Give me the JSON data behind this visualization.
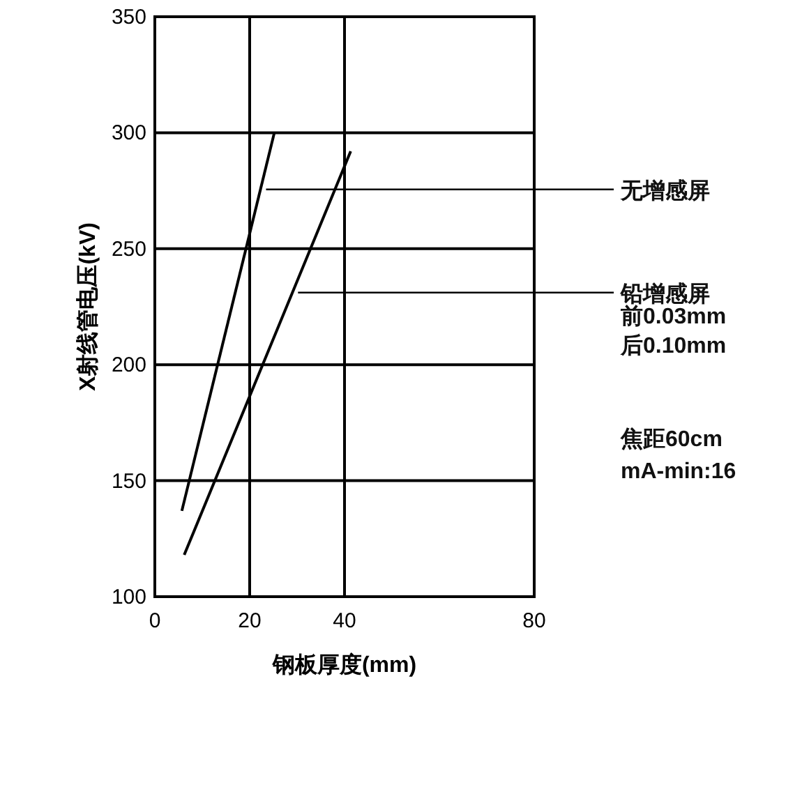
{
  "chart_data": {
    "type": "line",
    "xlabel": "钢板厚度(mm)",
    "ylabel": "X射线管电压(kV)",
    "xlim": [
      0,
      80
    ],
    "xticks": [
      0,
      20,
      40,
      80
    ],
    "ylim": [
      100,
      350
    ],
    "yticks": [
      100,
      150,
      200,
      250,
      300,
      350
    ],
    "grid": true,
    "series": [
      {
        "name": "无增感屏",
        "color": "#000000",
        "x": [
          5.7,
          25.2
        ],
        "values": [
          137,
          300
        ]
      },
      {
        "name": "铅增感屏",
        "color": "#000000",
        "x": [
          6.2,
          41.3
        ],
        "values": [
          118,
          292
        ]
      }
    ],
    "annotations": [
      "前0.03mm",
      "后0.10mm",
      "焦距60cm",
      "mA-min:16"
    ]
  }
}
